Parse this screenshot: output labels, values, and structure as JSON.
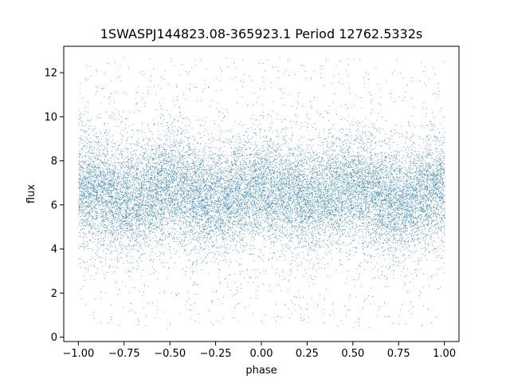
{
  "chart_data": {
    "type": "scatter",
    "title": "1SWASPJ144823.08-365923.1 Period 12762.5332s",
    "xlabel": "phase",
    "ylabel": "flux",
    "xlim": [
      -1.08,
      1.08
    ],
    "ylim": [
      -0.2,
      13.2
    ],
    "x_ticks": [
      -1.0,
      -0.75,
      -0.5,
      -0.25,
      0.0,
      0.25,
      0.5,
      0.75,
      1.0
    ],
    "x_tick_labels": [
      "−1.00",
      "−0.75",
      "−0.50",
      "−0.25",
      "0.00",
      "0.25",
      "0.50",
      "0.75",
      "1.00"
    ],
    "y_ticks": [
      0,
      2,
      4,
      6,
      8,
      10,
      12
    ],
    "y_tick_labels": [
      "0",
      "2",
      "4",
      "6",
      "8",
      "10",
      "12"
    ],
    "grid": false,
    "legend": "none",
    "point_color": "#1f77b4",
    "series": [
      {
        "phase_range": [
          -1.0,
          1.0
        ],
        "flux_range": [
          0.4,
          12.7
        ],
        "flux_center": 6.5,
        "flux_core_band": [
          5.0,
          8.0
        ],
        "modulation": "double-wave, minima near phase -0.75, -0.25, 0.25, 0.75 (slightly lower around 0.75)",
        "approx_point_count": 60000
      }
    ]
  }
}
